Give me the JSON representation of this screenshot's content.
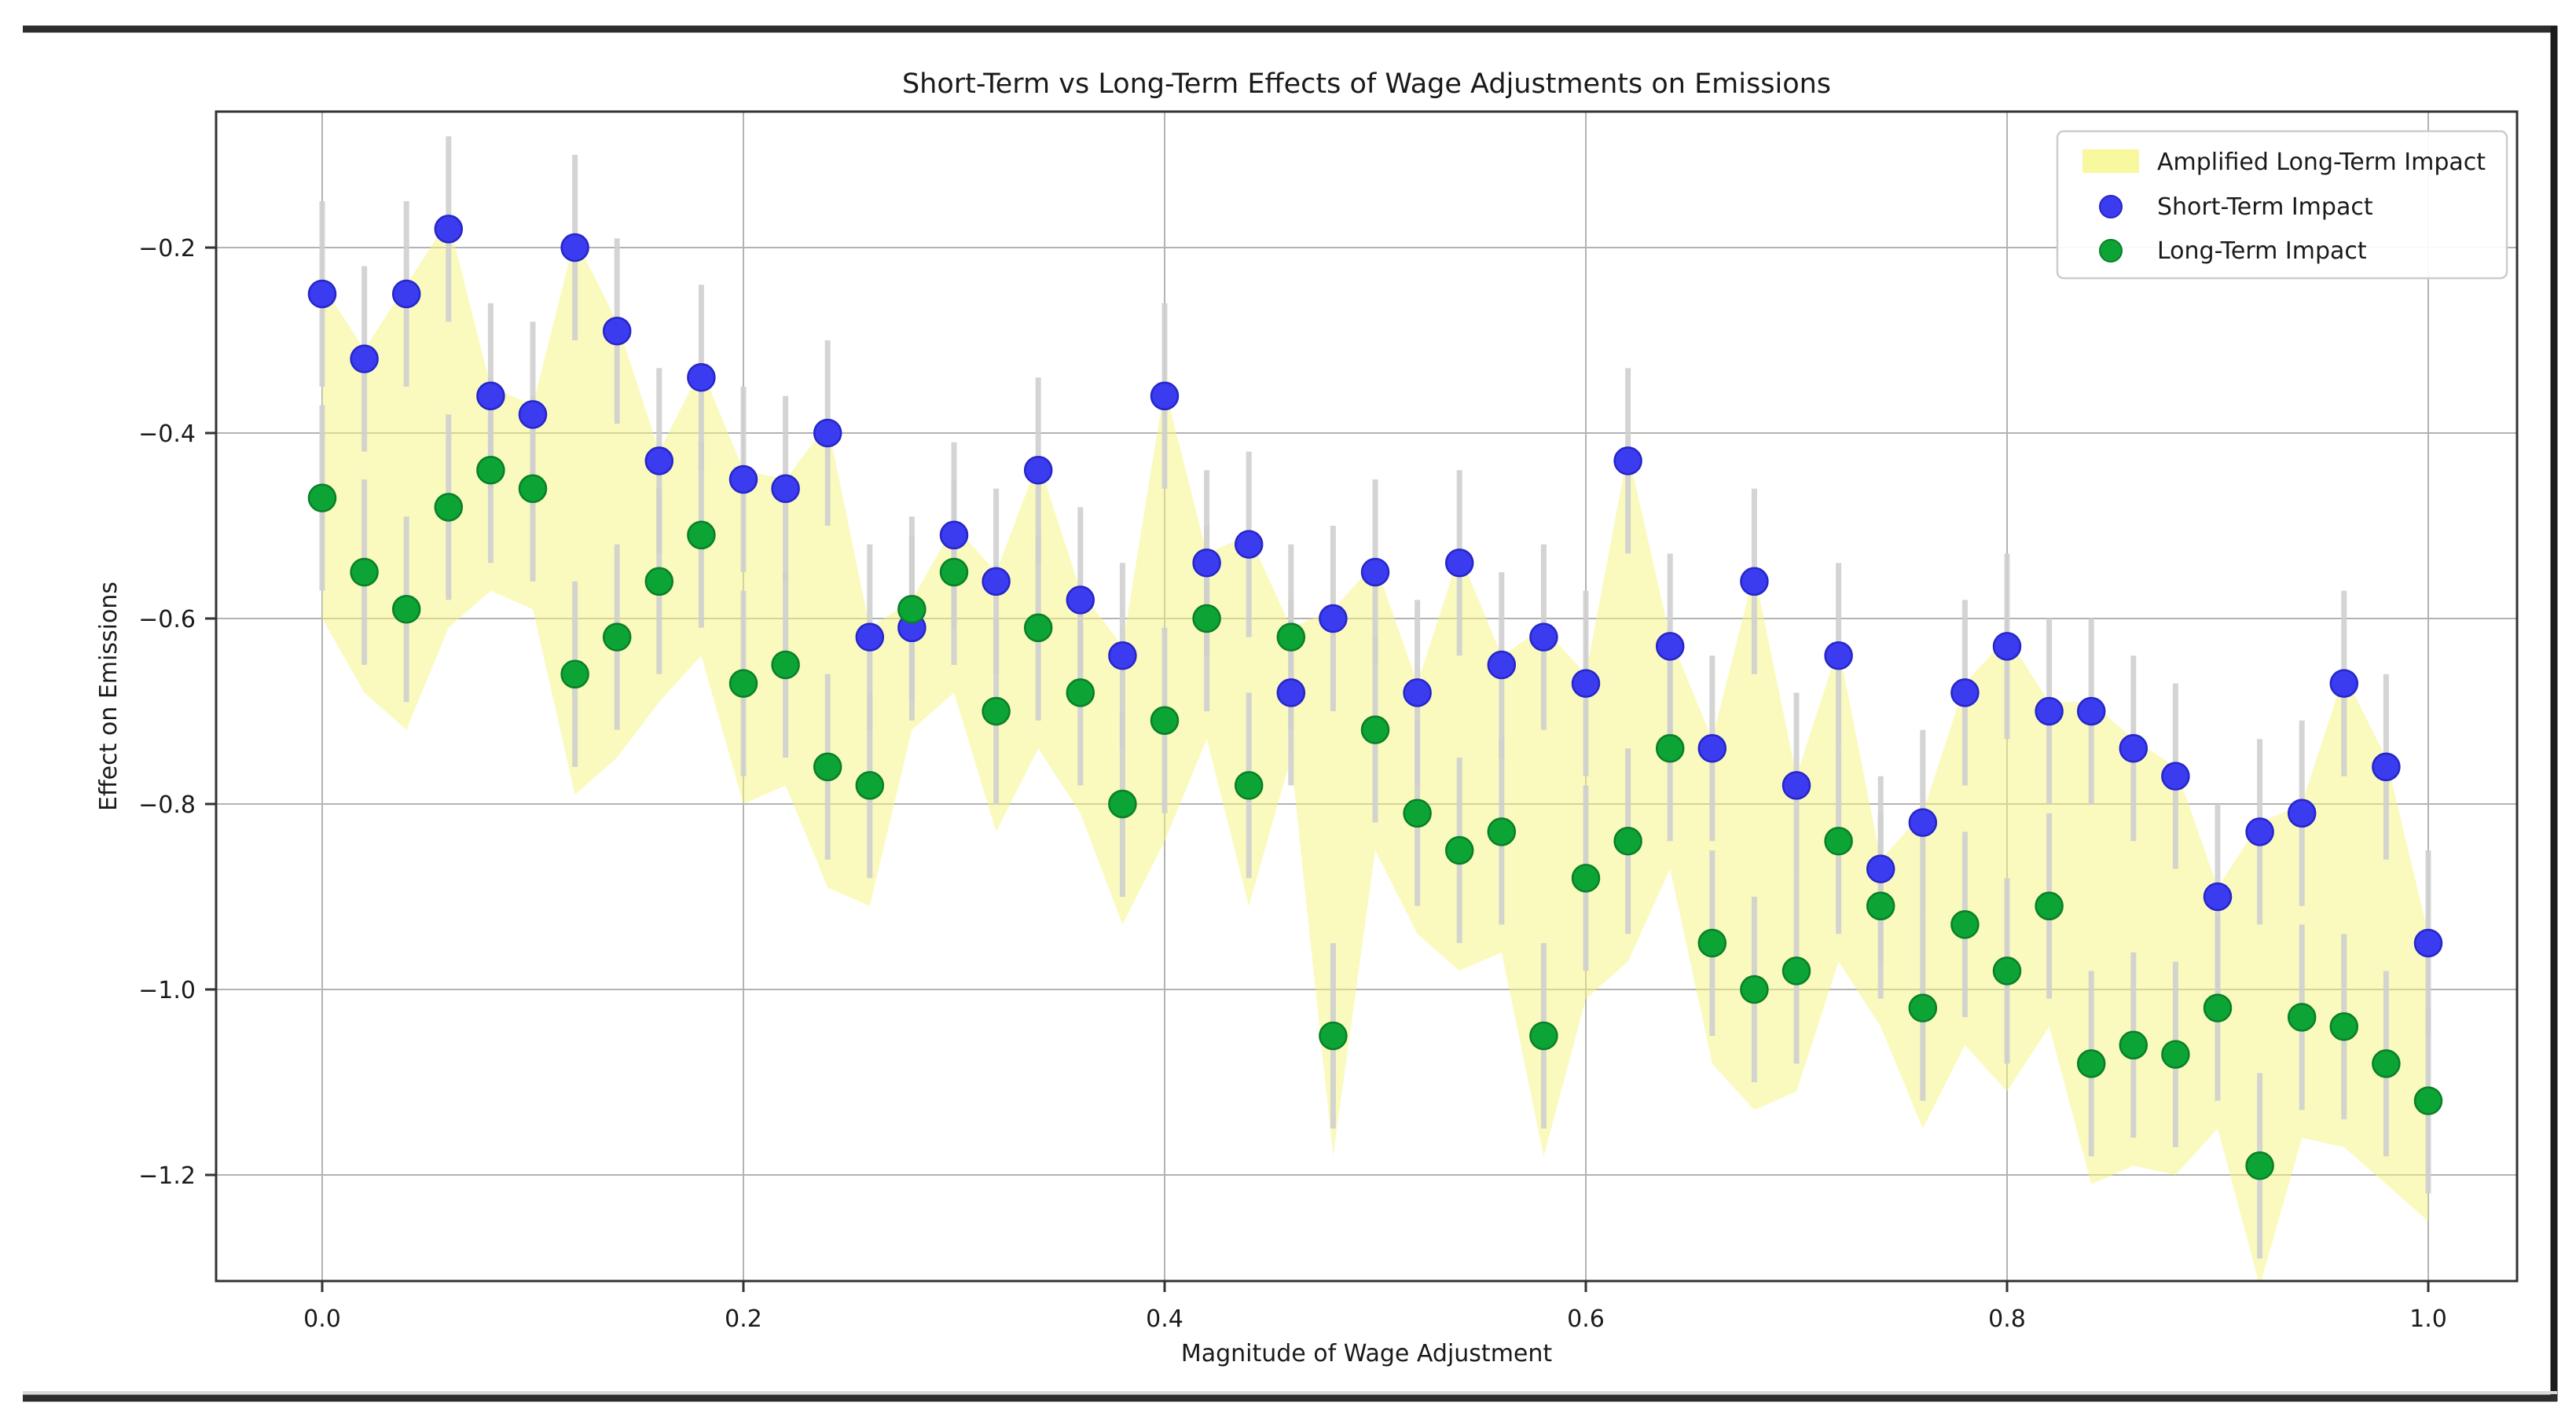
{
  "figure": {
    "title": "Short-Term vs Long-Term Effects of Wage Adjustments on Emissions",
    "background": "#ffffff",
    "frame_color": "#2d2d2d"
  },
  "axes": {
    "xlabel": "Magnitude of Wage Adjustment",
    "ylabel": "Effect on Emissions",
    "x_tick_labels": [
      "0.0",
      "0.2",
      "0.4",
      "0.6",
      "0.8",
      "1.0"
    ],
    "y_tick_labels": [
      "−0.2",
      "−0.4",
      "−0.6",
      "−0.8",
      "−1.0",
      "−1.2"
    ],
    "grid_color": "#b3b3b3",
    "spine_color": "#333333"
  },
  "legend": {
    "entries": [
      {
        "label": "Amplified Long-Term Impact",
        "marker": "patch",
        "color": "#f5f57d"
      },
      {
        "label": "Short-Term Impact",
        "marker": "dot",
        "color": "#3b3bef"
      },
      {
        "label": "Long-Term Impact",
        "marker": "dot",
        "color": "#0da436"
      }
    ]
  },
  "chart_data": {
    "type": "scatter",
    "title": "Short-Term vs Long-Term Effects of Wage Adjustments on Emissions",
    "xlabel": "Magnitude of Wage Adjustment",
    "ylabel": "Effect on Emissions",
    "xlim": [
      -0.05,
      1.042
    ],
    "ylim": [
      -1.314,
      -0.053
    ],
    "x_tick_values": [
      0.0,
      0.2,
      0.4,
      0.6,
      0.8,
      1.0
    ],
    "y_tick_values": [
      -0.2,
      -0.4,
      -0.6,
      -0.8,
      -1.0,
      -1.2
    ],
    "grid": true,
    "legend_position": "upper right",
    "error_bar": 0.1,
    "error_bar_color": "#cfcfcf",
    "x": [
      0.0,
      0.02,
      0.04,
      0.06,
      0.08,
      0.1,
      0.12,
      0.14,
      0.16,
      0.18,
      0.2,
      0.22,
      0.24,
      0.26,
      0.28,
      0.3,
      0.32,
      0.34,
      0.36,
      0.38,
      0.4,
      0.42,
      0.44,
      0.46,
      0.48,
      0.5,
      0.52,
      0.54,
      0.56,
      0.58,
      0.6,
      0.62,
      0.64,
      0.66,
      0.68,
      0.7,
      0.72,
      0.74,
      0.76,
      0.78,
      0.8,
      0.82,
      0.84,
      0.86,
      0.88,
      0.9,
      0.92,
      0.94,
      0.96,
      0.98,
      1.0
    ],
    "series": [
      {
        "name": "Short-Term Impact",
        "color": "#3b3bef",
        "edge_color": "#2626c9",
        "values": [
          -0.25,
          -0.32,
          -0.25,
          -0.18,
          -0.36,
          -0.38,
          -0.2,
          -0.29,
          -0.43,
          -0.34,
          -0.45,
          -0.46,
          -0.4,
          -0.62,
          -0.61,
          -0.51,
          -0.56,
          -0.44,
          -0.58,
          -0.64,
          -0.36,
          -0.54,
          -0.52,
          -0.68,
          -0.6,
          -0.55,
          -0.68,
          -0.54,
          -0.65,
          -0.62,
          -0.67,
          -0.43,
          -0.63,
          -0.74,
          -0.56,
          -0.78,
          -0.64,
          -0.87,
          -0.82,
          -0.68,
          -0.63,
          -0.7,
          -0.7,
          -0.74,
          -0.77,
          -0.9,
          -0.83,
          -0.81,
          -0.67,
          -0.76,
          -0.95
        ]
      },
      {
        "name": "Long-Term Impact",
        "color": "#0da436",
        "edge_color": "#0a7f28",
        "values": [
          -0.47,
          -0.55,
          -0.59,
          -0.48,
          -0.44,
          -0.46,
          -0.66,
          -0.62,
          -0.56,
          -0.51,
          -0.67,
          -0.65,
          -0.76,
          -0.78,
          -0.59,
          -0.55,
          -0.7,
          -0.61,
          -0.68,
          -0.8,
          -0.71,
          -0.6,
          -0.78,
          -0.62,
          -1.05,
          -0.72,
          -0.81,
          -0.85,
          -0.83,
          -1.05,
          -0.88,
          -0.84,
          -0.74,
          -0.95,
          -1.0,
          -0.98,
          -0.84,
          -0.91,
          -1.02,
          -0.93,
          -0.98,
          -0.91,
          -1.08,
          -1.06,
          -1.07,
          -1.02,
          -1.19,
          -1.03,
          -1.04,
          -1.08,
          -1.12
        ]
      }
    ],
    "band": {
      "label": "Amplified Long-Term Impact",
      "fill": "#f5f57d",
      "opacity": 0.5,
      "upper_rule": "max(short_term, long_term) + upper_offset",
      "lower_rule": "long_term + lower_offset",
      "upper_offset": 0.01,
      "lower_offset": -0.13
    }
  }
}
